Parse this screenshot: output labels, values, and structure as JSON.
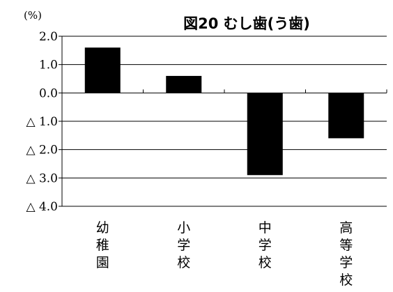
{
  "chart_data": {
    "type": "bar",
    "title": "図20 むし歯(う歯)",
    "unit": "(%)",
    "categories": [
      "幼稚園",
      "小学校",
      "中学校",
      "高等学校"
    ],
    "values": [
      1.6,
      0.6,
      -2.9,
      -1.6
    ],
    "ylim": [
      -4.0,
      2.0
    ],
    "y_ticks": [
      2.0,
      1.0,
      0.0,
      -1.0,
      -2.0,
      -3.0,
      -4.0
    ],
    "y_tick_labels": [
      "2.0",
      "1.0",
      "0.0",
      "△ 1.0",
      "△ 2.0",
      "△ 3.0",
      "△ 4.0"
    ],
    "grid": true,
    "bar_color": "#000000",
    "legend": "none"
  }
}
